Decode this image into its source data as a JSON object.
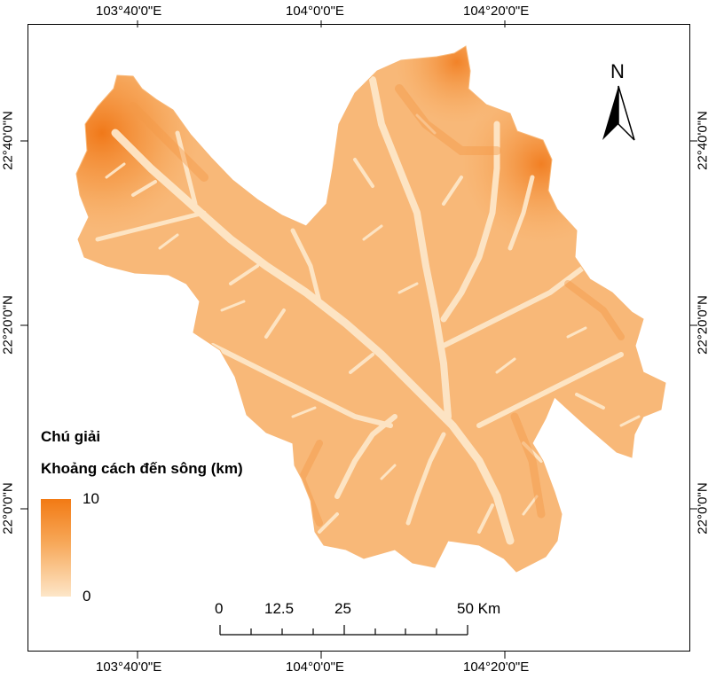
{
  "map": {
    "top_ticks": [
      "103°40'0\"E",
      "104°0'0\"E",
      "104°20'0\"E"
    ],
    "bottom_ticks": [
      "103°40'0\"E",
      "104°0'0\"E",
      "104°20'0\"E"
    ],
    "left_ticks": [
      "22°40'0\"N",
      "22°20'0\"N",
      "22°0'0\"N"
    ],
    "right_ticks": [
      "22°40'0\"N",
      "22°20'0\"N",
      "22°0'0\"N"
    ],
    "north_label": "N",
    "colors": {
      "high": "#f27a14",
      "mid": "#f7a859",
      "low": "#fde6c8",
      "frame": "#000000"
    }
  },
  "legend": {
    "title": "Chú giải",
    "subtitle": "Khoảng cách đến sông (km)",
    "max_label": "10",
    "min_label": "0"
  },
  "scalebar": {
    "labels": [
      "0",
      "12.5",
      "25",
      "50 Km"
    ]
  }
}
